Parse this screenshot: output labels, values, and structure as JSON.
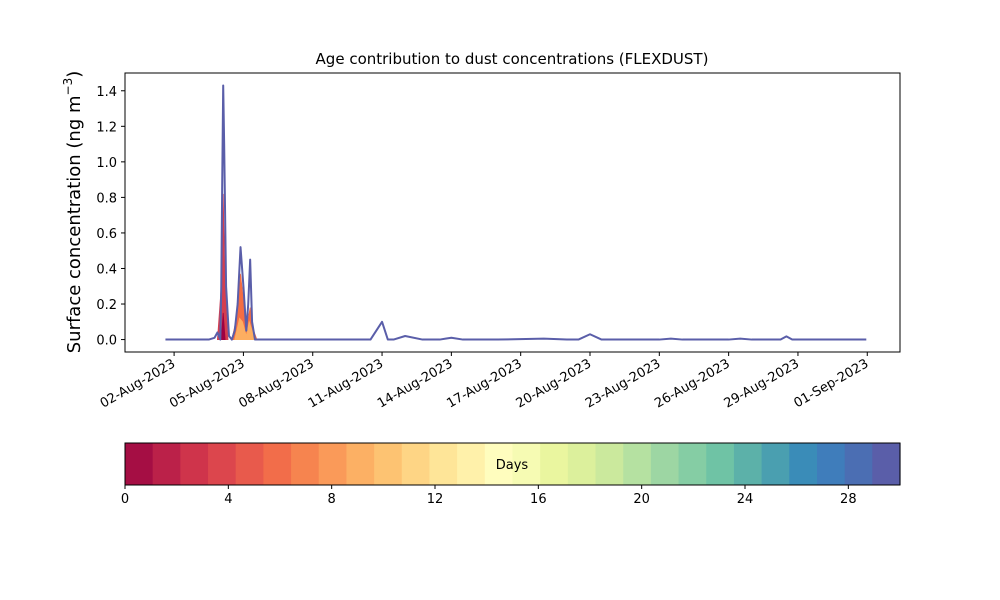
{
  "chart_data": {
    "type": "area",
    "title": "Age contribution to dust concentrations (FLEXDUST)",
    "ylabel_main": "Surface concentration (ng m",
    "ylabel_sup": "−3",
    "ylabel_end": ")",
    "xlabel": "",
    "ylim": [
      -0.07,
      1.5
    ],
    "xlim": [
      "2023-07-30T21:00",
      "2023-09-02T10:00"
    ],
    "y_ticks": [
      "0.0",
      "0.2",
      "0.4",
      "0.6",
      "0.8",
      "1.0",
      "1.2",
      "1.4"
    ],
    "x_ticks": [
      "02-Aug-2023",
      "05-Aug-2023",
      "08-Aug-2023",
      "11-Aug-2023",
      "14-Aug-2023",
      "17-Aug-2023",
      "20-Aug-2023",
      "23-Aug-2023",
      "26-Aug-2023",
      "29-Aug-2023",
      "01-Sep-2023"
    ],
    "series_start": "2023-08-01T15:00",
    "series_end": "2023-08-31T23:00",
    "total_series": {
      "x": [
        "2023-08-01T15:00",
        "2023-08-03T12:00",
        "2023-08-03T18:00",
        "2023-08-03T21:00",
        "2023-08-04T00:00",
        "2023-08-04T01:00",
        "2023-08-04T02:00",
        "2023-08-04T03:00",
        "2023-08-04T04:00",
        "2023-08-04T06:00",
        "2023-08-04T09:00",
        "2023-08-04T12:00",
        "2023-08-04T15:00",
        "2023-08-04T18:00",
        "2023-08-04T21:00",
        "2023-08-05T00:00",
        "2023-08-05T03:00",
        "2023-08-05T05:00",
        "2023-08-05T07:00",
        "2023-08-05T09:00",
        "2023-08-05T12:00",
        "2023-08-05T15:00",
        "2023-08-05T18:00",
        "2023-08-05T21:00",
        "2023-08-06T00:00",
        "2023-08-06T02:00",
        "2023-08-06T04:00",
        "2023-08-06T07:00",
        "2023-08-06T10:00",
        "2023-08-06T13:00",
        "2023-08-06T18:00",
        "2023-08-07T00:00",
        "2023-08-08T00:00",
        "2023-08-10T12:00",
        "2023-08-11T00:00",
        "2023-08-11T06:00",
        "2023-08-11T12:00",
        "2023-08-12T00:00",
        "2023-08-12T18:00",
        "2023-08-13T06:00",
        "2023-08-13T12:00",
        "2023-08-13T18:00",
        "2023-08-14T00:00",
        "2023-08-14T12:00",
        "2023-08-16T00:00",
        "2023-08-18T00:00",
        "2023-08-19T00:00",
        "2023-08-19T12:00",
        "2023-08-20T00:00",
        "2023-08-20T12:00",
        "2023-08-23T00:00",
        "2023-08-23T12:00",
        "2023-08-24T00:00",
        "2023-08-25T00:00",
        "2023-08-26T00:00",
        "2023-08-26T12:00",
        "2023-08-27T00:00",
        "2023-08-27T12:00",
        "2023-08-28T06:00",
        "2023-08-28T12:00",
        "2023-08-28T18:00",
        "2023-08-29T00:00",
        "2023-08-29T12:00",
        "2023-08-30T12:00",
        "2023-08-31T23:00"
      ],
      "y": [
        0.0,
        0.0,
        0.01,
        0.04,
        0.0,
        0.3,
        0.9,
        1.43,
        1.1,
        0.3,
        0.02,
        0.0,
        0.05,
        0.2,
        0.52,
        0.3,
        0.05,
        0.2,
        0.45,
        0.1,
        0.0,
        0.0,
        0.0,
        0.0,
        0.0,
        0.0,
        0.0,
        0.0,
        0.0,
        0.0,
        0.0,
        0.0,
        0.0,
        0.0,
        0.1,
        0.0,
        0.0,
        0.02,
        0.0,
        0.0,
        0.0,
        0.005,
        0.01,
        0.0,
        0.0,
        0.005,
        0.0,
        0.0,
        0.03,
        0.0,
        0.0,
        0.005,
        0.0,
        0.0,
        0.0,
        0.005,
        0.0,
        0.0,
        0.0,
        0.018,
        0.0,
        0.0,
        0.0,
        0.0,
        0.0
      ]
    },
    "age_bands": [
      {
        "age_days": 2,
        "color": "#d53e4f",
        "x": [
          "2023-08-03T21:00",
          "2023-08-04T01:00",
          "2023-08-04T03:00",
          "2023-08-04T05:00",
          "2023-08-04T08:00"
        ],
        "y": [
          0.0,
          0.3,
          0.82,
          0.3,
          0.0
        ]
      },
      {
        "age_days": 6,
        "color": "#f46d43",
        "x": [
          "2023-08-04T12:00",
          "2023-08-04T18:00",
          "2023-08-04T21:00",
          "2023-08-05T00:00",
          "2023-08-05T03:00",
          "2023-08-05T05:00",
          "2023-08-05T07:00",
          "2023-08-05T10:00",
          "2023-08-05T14:00"
        ],
        "y": [
          0.0,
          0.15,
          0.37,
          0.22,
          0.05,
          0.12,
          0.18,
          0.06,
          0.0
        ]
      },
      {
        "age_days": 9,
        "color": "#fdae61",
        "x": [
          "2023-08-04T15:00",
          "2023-08-04T20:00",
          "2023-08-04T23:00",
          "2023-08-05T03:00",
          "2023-08-05T06:00",
          "2023-08-05T09:00",
          "2023-08-05T13:00"
        ],
        "y": [
          0.0,
          0.12,
          0.1,
          0.02,
          0.1,
          0.05,
          0.0
        ]
      },
      {
        "age_days": 1,
        "color": "#9e0142",
        "x": [
          "2023-08-04T01:00",
          "2023-08-04T03:00",
          "2023-08-04T05:00"
        ],
        "y": [
          0.0,
          0.15,
          0.0
        ]
      }
    ],
    "colorbar": {
      "label": "Days",
      "range": [
        0,
        30
      ],
      "ticks": [
        "0",
        "4",
        "8",
        "12",
        "16",
        "20",
        "24",
        "28"
      ],
      "colors": [
        "#a50e44",
        "#bb2149",
        "#cf344b",
        "#dc464d",
        "#e85a4c",
        "#f26d4a",
        "#f6844f",
        "#fa9a59",
        "#fcb064",
        "#fdc372",
        "#fed585",
        "#fee598",
        "#fff1aa",
        "#fffdbe",
        "#f6fbb3",
        "#eaf69f",
        "#dcf09c",
        "#cbe99d",
        "#b5e1a1",
        "#9dd6a3",
        "#85cda4",
        "#6fc3a5",
        "#5cb1a9",
        "#4a9fb0",
        "#3a8cb8",
        "#3f7dbb",
        "#4b6eb3",
        "#5a5ea9"
      ]
    }
  }
}
